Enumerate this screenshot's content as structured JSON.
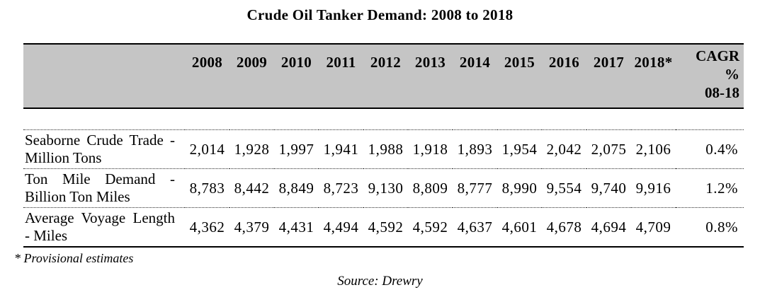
{
  "title": "Crude Oil Tanker Demand: 2008 to 2018",
  "table": {
    "year_columns": [
      "2008",
      "2009",
      "2010",
      "2011",
      "2012",
      "2013",
      "2014",
      "2015",
      "2016",
      "2017",
      "2018*"
    ],
    "cagr_header": [
      "CAGR",
      "%",
      "08-18"
    ],
    "rows": [
      {
        "label": "Seaborne Crude Trade - Million Tons",
        "label_lines": [
          "Seaborne Crude Trade -",
          "Million Tons"
        ],
        "values": [
          "2,014",
          "1,928",
          "1,997",
          "1,941",
          "1,988",
          "1,918",
          "1,893",
          "1,954",
          "2,042",
          "2,075",
          "2,106"
        ],
        "cagr": "0.4%"
      },
      {
        "label": "Ton Mile Demand - Billion Ton Miles",
        "label_lines": [
          "Ton Mile Demand -",
          "Billion Ton Miles"
        ],
        "values": [
          "8,783",
          "8,442",
          "8,849",
          "8,723",
          "9,130",
          "8,809",
          "8,777",
          "8,990",
          "9,554",
          "9,740",
          "9,916"
        ],
        "cagr": "1.2%"
      },
      {
        "label": "Average Voyage Length - Miles",
        "label_lines": [
          "Average Voyage Length",
          "- Miles"
        ],
        "values": [
          "4,362",
          "4,379",
          "4,431",
          "4,494",
          "4,592",
          "4,592",
          "4,637",
          "4,601",
          "4,678",
          "4,694",
          "4,709"
        ],
        "cagr": "0.8%"
      }
    ]
  },
  "footnote": "* Provisional estimates",
  "source": "Source: Drewry",
  "colors": {
    "header_bg": "#c5c5c5",
    "border": "#000000",
    "text": "#000000"
  }
}
